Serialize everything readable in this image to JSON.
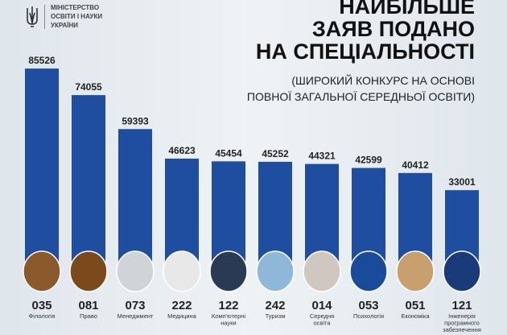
{
  "logo": {
    "line1": "МІНІСТЕРСТВО",
    "line2": "ОСВІТИ І НАУКИ",
    "line3": "УКРАЇНИ",
    "emblem": "trident-icon"
  },
  "chart_data": {
    "type": "bar",
    "title": "НАЙБІЛЬШЕ ЗАЯВ ПОДАНО НА СПЕЦІАЛЬНОСТІ",
    "title_lines": [
      "НАЙБІЛЬШЕ",
      "ЗАЯВ ПОДАНО",
      "НА СПЕЦІАЛЬНОСТІ"
    ],
    "subtitle_lines": [
      "(ШИРОКИЙ КОНКУРС НА ОСНОВІ",
      "ПОВНОЇ ЗАГАЛЬНОЇ СЕРЕДНЬОЇ ОСВІТИ)"
    ],
    "codes": [
      "035",
      "081",
      "073",
      "222",
      "122",
      "242",
      "014",
      "053",
      "051",
      "121"
    ],
    "categories": [
      [
        "Філологія"
      ],
      [
        "Право"
      ],
      [
        "Менеджмент"
      ],
      [
        "Медицина"
      ],
      [
        "Комп'ютерні",
        "науки"
      ],
      [
        "Туризм"
      ],
      [
        "Середня",
        "освіта"
      ],
      [
        "Психологія"
      ],
      [
        "Економіка"
      ],
      [
        "Інженерія",
        "програмного",
        "забезпечення"
      ]
    ],
    "values": [
      85526,
      74055,
      59393,
      46623,
      45454,
      45252,
      44321,
      42599,
      40412,
      33001
    ],
    "bar_color": "#1f4ea1",
    "ylim": [
      0,
      90000
    ],
    "grid": false
  }
}
